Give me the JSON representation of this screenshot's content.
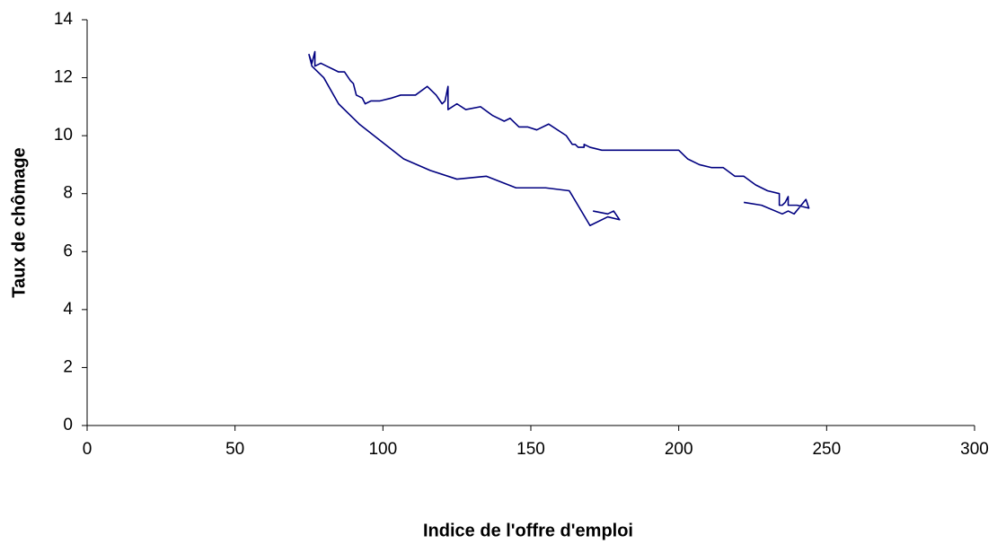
{
  "chart_data": {
    "type": "line",
    "xlabel": "Indice de l'offre d'emploi",
    "ylabel": "Taux de chômage",
    "x": [
      171,
      176,
      178,
      180,
      176,
      170,
      163,
      155,
      145,
      135,
      125,
      116,
      107,
      92,
      85,
      80,
      76,
      75,
      76,
      77,
      77,
      79,
      81,
      83,
      85,
      87,
      89,
      90,
      91,
      93,
      94,
      96,
      99,
      103,
      106,
      111,
      115,
      118,
      120,
      121,
      122,
      122,
      125,
      128,
      133,
      137,
      141,
      143,
      146,
      149,
      152,
      156,
      162,
      164,
      165,
      166,
      168,
      168,
      170,
      174,
      200,
      203,
      207,
      211,
      215,
      219,
      222,
      226,
      230,
      234,
      234,
      235,
      236,
      237,
      237,
      240,
      244,
      243,
      239,
      237,
      235,
      228,
      222
    ],
    "values": [
      7.4,
      7.3,
      7.4,
      7.1,
      7.2,
      6.9,
      8.1,
      8.2,
      8.2,
      8.6,
      8.5,
      8.8,
      9.2,
      10.4,
      11.1,
      12.0,
      12.4,
      12.8,
      12.5,
      12.9,
      12.4,
      12.5,
      12.4,
      12.3,
      12.2,
      12.2,
      11.9,
      11.8,
      11.4,
      11.3,
      11.1,
      11.2,
      11.2,
      11.3,
      11.4,
      11.4,
      11.7,
      11.4,
      11.1,
      11.2,
      11.7,
      10.9,
      11.1,
      10.9,
      11.0,
      10.7,
      10.5,
      10.6,
      10.3,
      10.3,
      10.2,
      10.4,
      10.0,
      9.7,
      9.7,
      9.6,
      9.6,
      9.7,
      9.6,
      9.5,
      9.5,
      9.2,
      9.0,
      8.9,
      8.9,
      8.6,
      8.6,
      8.3,
      8.1,
      8.0,
      7.6,
      7.6,
      7.7,
      7.9,
      7.6,
      7.6,
      7.5,
      7.8,
      7.3,
      7.4,
      7.3,
      7.6,
      7.7
    ],
    "color": "#000080",
    "xlim": [
      0,
      300
    ],
    "xticks": [
      0,
      50,
      100,
      150,
      200,
      250,
      300
    ],
    "ylim": [
      0,
      14
    ],
    "yticks": [
      0,
      2,
      4,
      6,
      8,
      10,
      12,
      14
    ],
    "grid": false
  }
}
